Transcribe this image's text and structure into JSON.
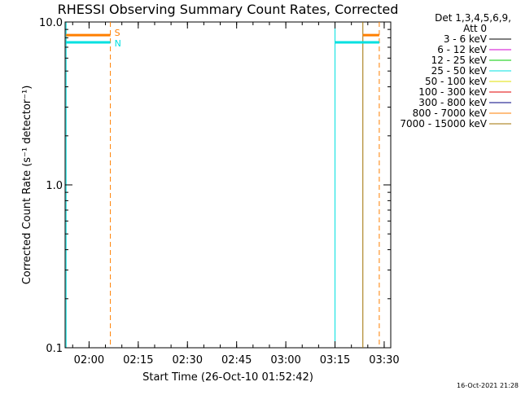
{
  "chart_data": {
    "type": "line",
    "title": "RHESSI Observing Summary Count Rates, Corrected",
    "xlabel": "Start Time (26-Oct-10 01:52:42)",
    "ylabel": "Corrected Count Rate (s⁻¹ detector⁻¹)",
    "yscale": "log",
    "ylim": [
      0.1,
      10.0
    ],
    "xlim": [
      "01:52:42",
      "03:32:00"
    ],
    "x_ticks": [
      "02:00",
      "02:15",
      "02:30",
      "02:45",
      "03:00",
      "03:15",
      "03:30"
    ],
    "y_ticks": [
      "0.1",
      "1.0",
      "10.0"
    ],
    "grid": false,
    "legend": {
      "position": "top-right",
      "header": [
        "Det 1,3,4,5,6,9,",
        "Att 0"
      ],
      "entries": [
        {
          "label": "3 - 6 keV",
          "color": "#000000"
        },
        {
          "label": "6 - 12 keV",
          "color": "#d000d0"
        },
        {
          "label": "12 - 25 keV",
          "color": "#00cc00"
        },
        {
          "label": "25 - 50 keV",
          "color": "#00e0e0"
        },
        {
          "label": "50 - 100 keV",
          "color": "#e0e000"
        },
        {
          "label": "100 - 300 keV",
          "color": "#e00000"
        },
        {
          "label": "300 - 800 keV",
          "color": "#000080"
        },
        {
          "label": "800 - 7000 keV",
          "color": "#ff7f00"
        },
        {
          "label": "7000 - 15000 keV",
          "color": "#a07000"
        }
      ]
    },
    "flag_bars": [
      {
        "label": "S",
        "color": "#ff7f00",
        "y": 8.3,
        "segments": [
          [
            "01:53:00",
            "02:06:30"
          ],
          [
            "03:23:30",
            "03:28:30"
          ]
        ]
      },
      {
        "label": "N",
        "color": "#00e0e0",
        "y": 7.5,
        "segments": [
          [
            "01:53:00",
            "02:06:30"
          ],
          [
            "03:15:00",
            "03:28:30"
          ]
        ]
      }
    ],
    "vlines": [
      {
        "time": "01:53:00",
        "color": "#00e0e0",
        "style": "solid"
      },
      {
        "time": "02:06:30",
        "color": "#ff7f00",
        "style": "dashed"
      },
      {
        "time": "03:15:00",
        "color": "#00e0e0",
        "style": "solid"
      },
      {
        "time": "03:23:30",
        "color": "#a07000",
        "style": "solid"
      },
      {
        "time": "03:28:30",
        "color": "#ff7f00",
        "style": "dashed"
      }
    ]
  },
  "footer": {
    "timestamp": "16-Oct-2021 21:28"
  }
}
